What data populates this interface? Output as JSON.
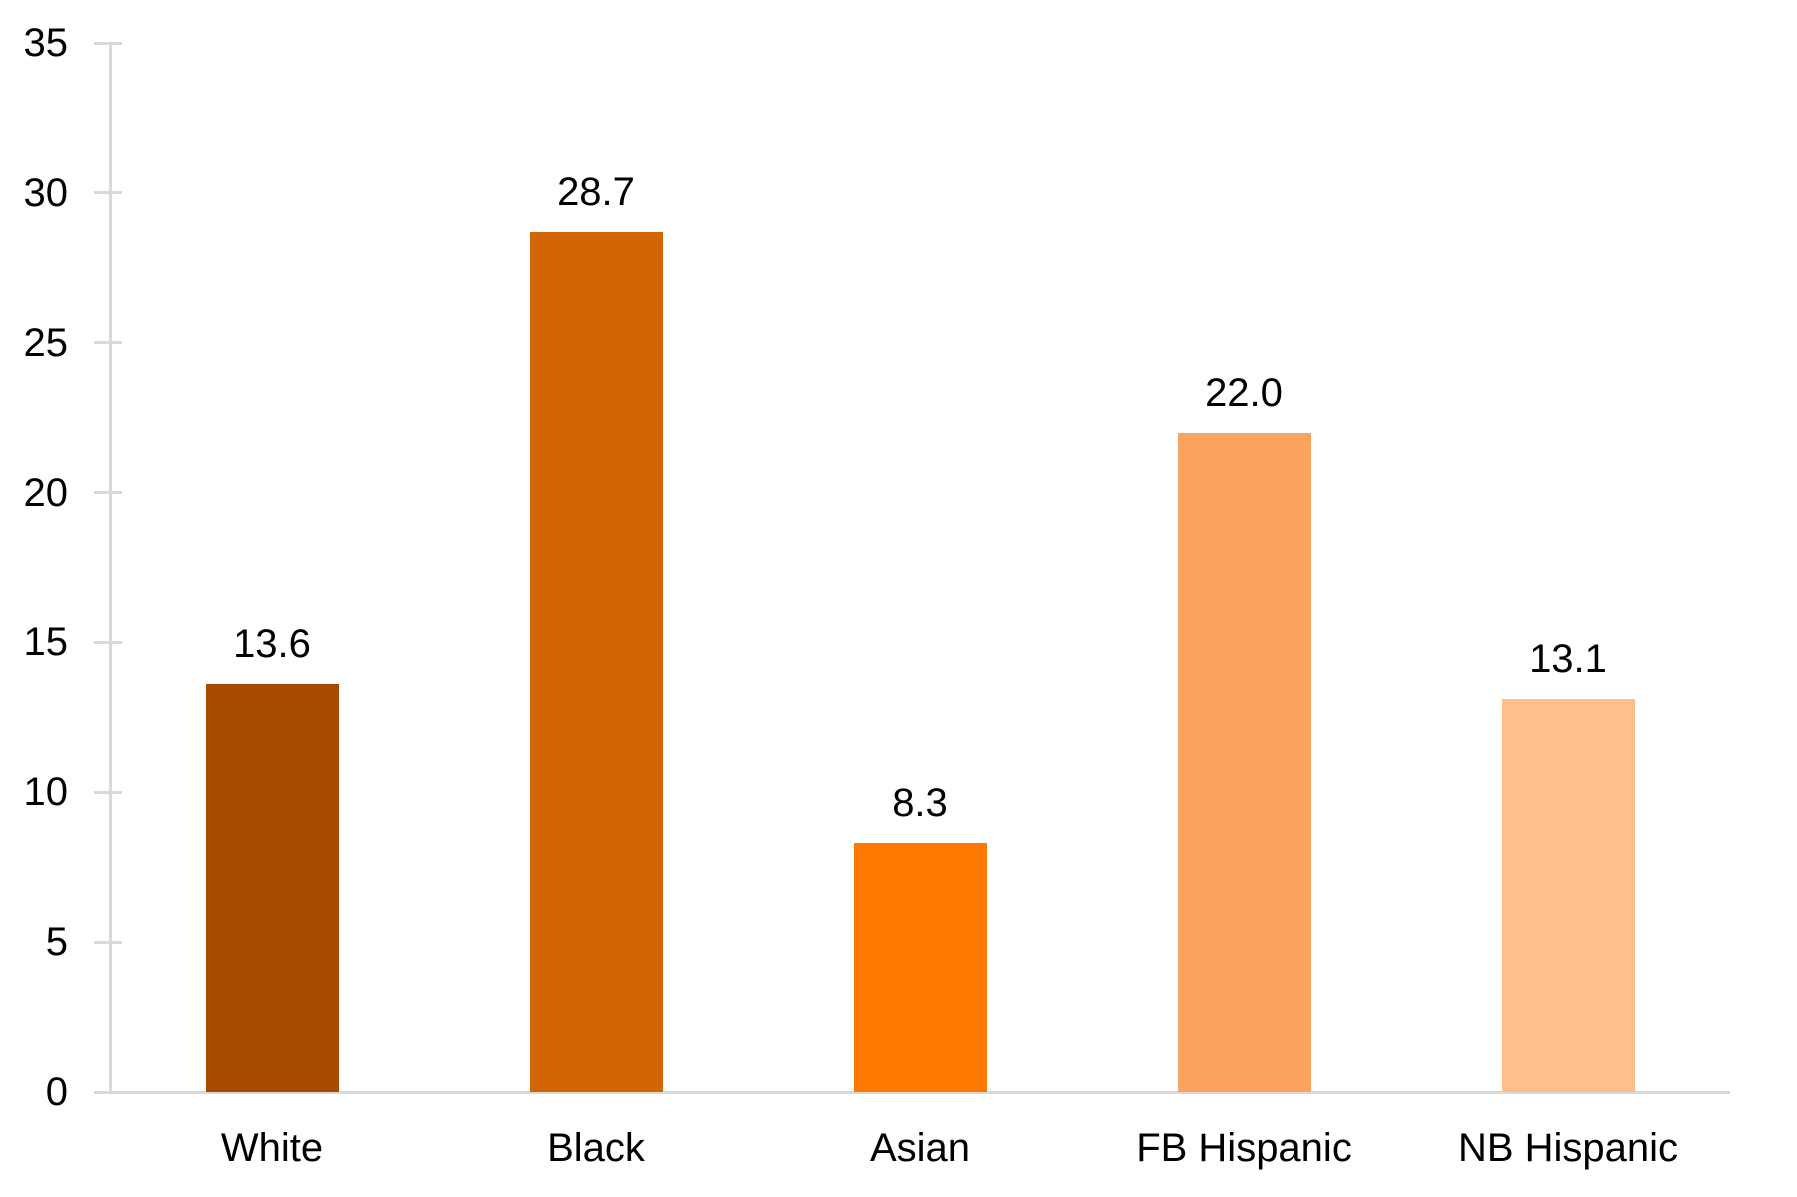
{
  "chart_data": {
    "type": "bar",
    "title": "",
    "xlabel": "",
    "ylabel": "",
    "categories": [
      "White",
      "Black",
      "Asian",
      "FB Hispanic",
      "NB Hispanic"
    ],
    "values": [
      13.6,
      28.7,
      8.3,
      22.0,
      13.1
    ],
    "value_labels": [
      "13.6",
      "28.7",
      "8.3",
      "22.0",
      "13.1"
    ],
    "bar_colors": [
      "#A54B00",
      "#D06502",
      "#FF7800",
      "#FCA45F",
      "#FDBF8C"
    ],
    "ylim": [
      0,
      35
    ],
    "ytick_interval": 5,
    "yticks": [
      0,
      5,
      10,
      15,
      20,
      25,
      30,
      35
    ],
    "ytick_labels": [
      "0",
      "5",
      "10",
      "15",
      "20",
      "25",
      "30",
      "35"
    ],
    "grid": false,
    "legend": false,
    "legend_position": "none",
    "axis_color": "#D9D9D9",
    "text_color": "#000000",
    "background_color": "#FFFFFF"
  }
}
